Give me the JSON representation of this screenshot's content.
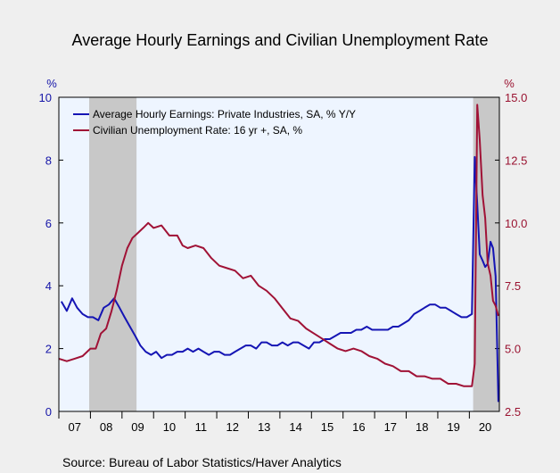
{
  "chart_data": {
    "type": "line",
    "title": "Average Hourly Earnings and Civilian Unemployment Rate",
    "source": "Source:  Bureau of Labor Statistics/Haver Analytics",
    "left_axis": {
      "unit": "%",
      "range": [
        0,
        10
      ],
      "ticks": [
        "0",
        "2",
        "4",
        "6",
        "8",
        "10"
      ]
    },
    "right_axis": {
      "unit": "%",
      "range": [
        2.5,
        15.0
      ],
      "ticks": [
        "2.5",
        "5.0",
        "7.5",
        "10.0",
        "12.5",
        "15.0"
      ]
    },
    "x_range": [
      2007.0,
      2020.95
    ],
    "x_ticks": [
      "07",
      "08",
      "09",
      "10",
      "11",
      "12",
      "13",
      "14",
      "15",
      "16",
      "17",
      "18",
      "19",
      "20"
    ],
    "recessions": [
      [
        2007.96,
        2009.46
      ],
      [
        2020.12,
        2020.95
      ]
    ],
    "grid": false,
    "legend_position": "top-left",
    "colors": {
      "plot_bg": "#eef5ff",
      "recession": "#c8c8c8",
      "earnings": "#1515b4",
      "unemployment": "#a01236"
    },
    "series": [
      {
        "name": "Average Hourly Earnings: Private Industries, SA, % Y/Y",
        "axis": "left",
        "x": [
          2007.08,
          2007.25,
          2007.42,
          2007.58,
          2007.75,
          2007.92,
          2008.08,
          2008.25,
          2008.42,
          2008.58,
          2008.75,
          2008.92,
          2009.08,
          2009.25,
          2009.42,
          2009.58,
          2009.75,
          2009.92,
          2010.08,
          2010.25,
          2010.42,
          2010.58,
          2010.75,
          2010.92,
          2011.08,
          2011.25,
          2011.42,
          2011.58,
          2011.75,
          2011.92,
          2012.08,
          2012.25,
          2012.42,
          2012.58,
          2012.75,
          2012.92,
          2013.08,
          2013.25,
          2013.42,
          2013.58,
          2013.75,
          2013.92,
          2014.08,
          2014.25,
          2014.42,
          2014.58,
          2014.75,
          2014.92,
          2015.08,
          2015.25,
          2015.42,
          2015.58,
          2015.75,
          2015.92,
          2016.08,
          2016.25,
          2016.42,
          2016.58,
          2016.75,
          2016.92,
          2017.08,
          2017.25,
          2017.42,
          2017.58,
          2017.75,
          2017.92,
          2018.08,
          2018.25,
          2018.42,
          2018.58,
          2018.75,
          2018.92,
          2019.08,
          2019.25,
          2019.42,
          2019.58,
          2019.75,
          2019.92,
          2020.08,
          2020.17,
          2020.25,
          2020.33,
          2020.42,
          2020.5,
          2020.58,
          2020.67,
          2020.75,
          2020.83,
          2020.92
        ],
        "values": [
          3.5,
          3.2,
          3.6,
          3.3,
          3.1,
          3.0,
          3.0,
          2.9,
          3.3,
          3.4,
          3.6,
          3.3,
          3.0,
          2.7,
          2.4,
          2.1,
          1.9,
          1.8,
          1.9,
          1.7,
          1.8,
          1.8,
          1.9,
          1.9,
          2.0,
          1.9,
          2.0,
          1.9,
          1.8,
          1.9,
          1.9,
          1.8,
          1.8,
          1.9,
          2.0,
          2.1,
          2.1,
          2.0,
          2.2,
          2.2,
          2.1,
          2.1,
          2.2,
          2.1,
          2.2,
          2.2,
          2.1,
          2.0,
          2.2,
          2.2,
          2.3,
          2.3,
          2.4,
          2.5,
          2.5,
          2.5,
          2.6,
          2.6,
          2.7,
          2.6,
          2.6,
          2.6,
          2.6,
          2.7,
          2.7,
          2.8,
          2.9,
          3.1,
          3.2,
          3.3,
          3.4,
          3.4,
          3.3,
          3.3,
          3.2,
          3.1,
          3.0,
          3.0,
          3.1,
          8.1,
          6.6,
          5.0,
          4.8,
          4.6,
          4.7,
          5.4,
          5.2,
          4.3,
          0.3
        ]
      },
      {
        "name": "Civilian Unemployment Rate: 16 yr +, SA, %",
        "axis": "right",
        "x": [
          2007.0,
          2007.25,
          2007.5,
          2007.75,
          2008.0,
          2008.17,
          2008.33,
          2008.5,
          2008.67,
          2008.83,
          2009.0,
          2009.17,
          2009.33,
          2009.5,
          2009.67,
          2009.83,
          2010.0,
          2010.25,
          2010.5,
          2010.75,
          2010.92,
          2011.08,
          2011.33,
          2011.58,
          2011.83,
          2012.08,
          2012.33,
          2012.58,
          2012.83,
          2013.08,
          2013.33,
          2013.58,
          2013.83,
          2014.08,
          2014.33,
          2014.58,
          2014.83,
          2015.08,
          2015.33,
          2015.58,
          2015.83,
          2016.08,
          2016.33,
          2016.58,
          2016.83,
          2017.08,
          2017.33,
          2017.58,
          2017.83,
          2018.08,
          2018.33,
          2018.58,
          2018.83,
          2019.08,
          2019.33,
          2019.58,
          2019.83,
          2020.08,
          2020.17,
          2020.25,
          2020.33,
          2020.42,
          2020.5,
          2020.58,
          2020.67,
          2020.75,
          2020.83,
          2020.92
        ],
        "values": [
          4.6,
          4.5,
          4.6,
          4.7,
          5.0,
          5.0,
          5.6,
          5.8,
          6.5,
          7.3,
          8.3,
          9.0,
          9.4,
          9.6,
          9.8,
          10.0,
          9.8,
          9.9,
          9.5,
          9.5,
          9.1,
          9.0,
          9.1,
          9.0,
          8.6,
          8.3,
          8.2,
          8.1,
          7.8,
          7.9,
          7.5,
          7.3,
          7.0,
          6.6,
          6.2,
          6.1,
          5.8,
          5.6,
          5.4,
          5.2,
          5.0,
          4.9,
          5.0,
          4.9,
          4.7,
          4.6,
          4.4,
          4.3,
          4.1,
          4.1,
          3.9,
          3.9,
          3.8,
          3.8,
          3.6,
          3.6,
          3.5,
          3.5,
          4.4,
          14.7,
          13.3,
          11.1,
          10.2,
          8.4,
          7.9,
          6.9,
          6.7,
          6.3
        ]
      }
    ]
  }
}
